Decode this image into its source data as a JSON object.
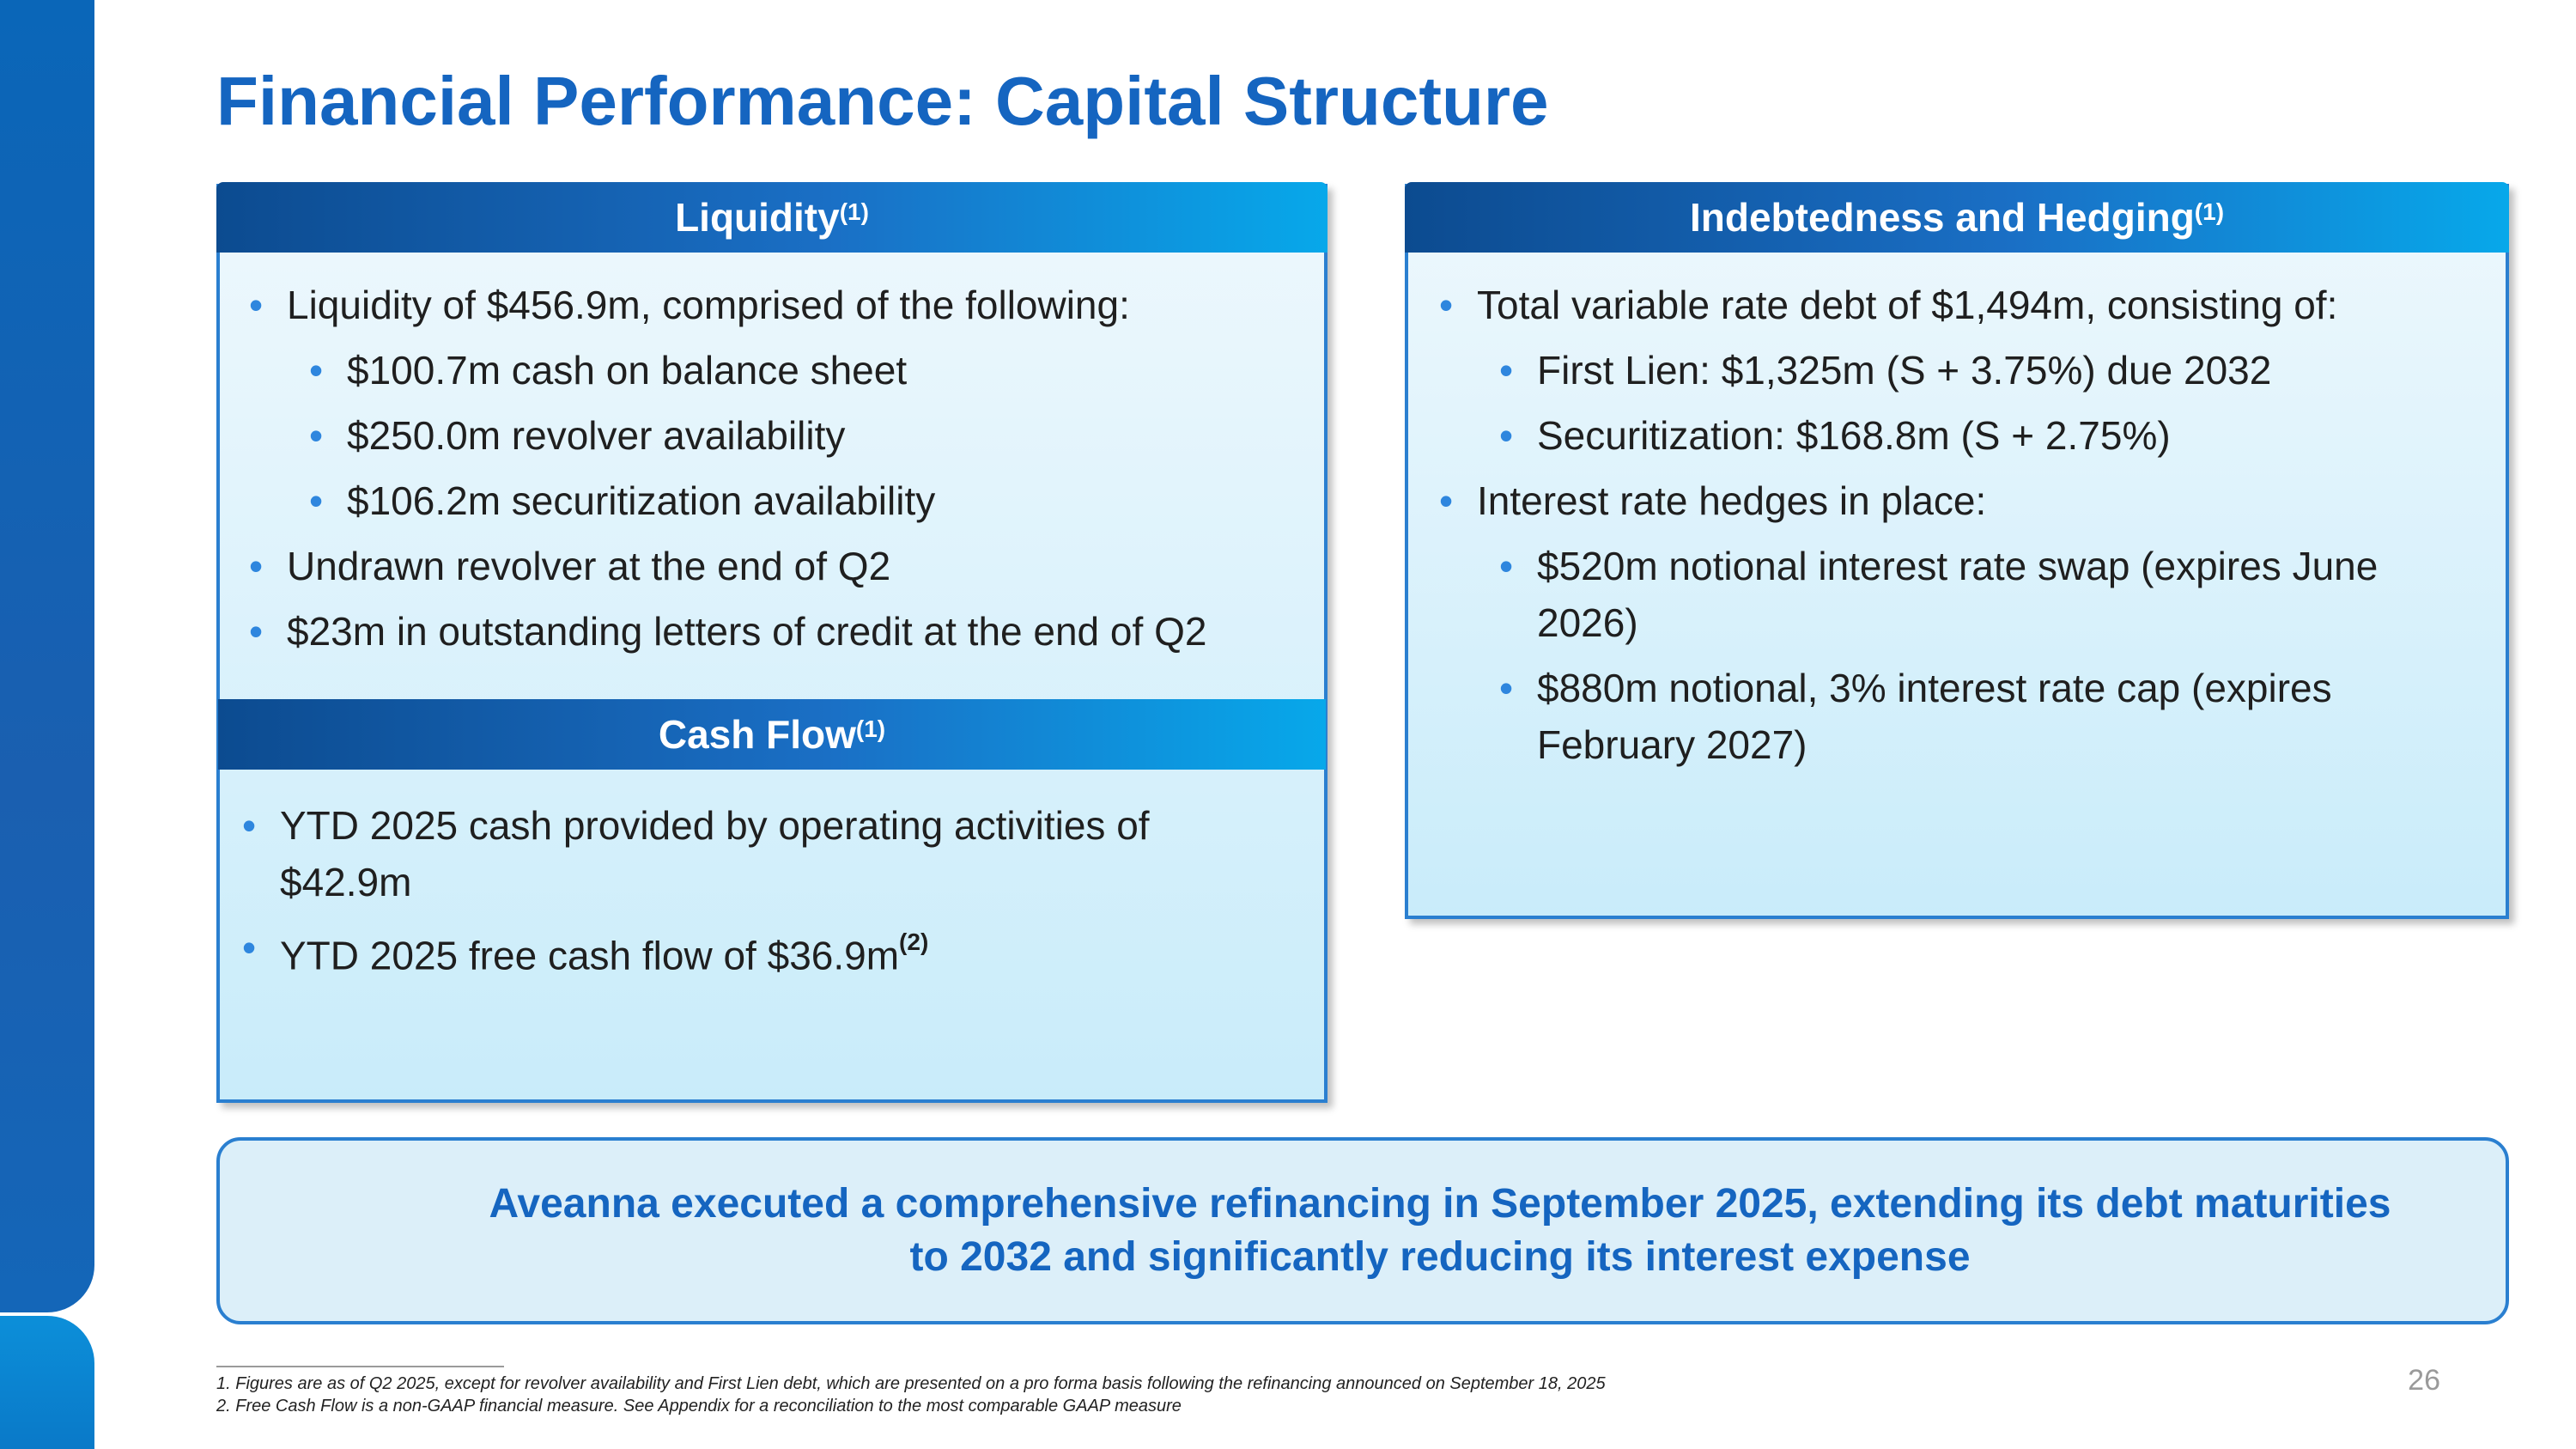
{
  "slide": {
    "title": "Financial Performance: Capital Structure",
    "page_number": "26"
  },
  "liquidity": {
    "heading": "Liquidity",
    "heading_note": "(1)",
    "items": [
      {
        "text": "Liquidity of $456.9m, comprised of the following:",
        "level": 1
      },
      {
        "text": "$100.7m cash on balance sheet",
        "level": 2
      },
      {
        "text": "$250.0m revolver availability",
        "level": 2
      },
      {
        "text": "$106.2m securitization availability",
        "level": 2
      },
      {
        "text": "Undrawn revolver at the end of Q2",
        "level": 1
      },
      {
        "text": "$23m in outstanding letters of credit at the end of Q2",
        "level": 1
      }
    ]
  },
  "cash_flow": {
    "heading": "Cash Flow",
    "heading_note": "(1)",
    "items": [
      {
        "text": "YTD 2025 cash provided by operating activities of $42.9m"
      },
      {
        "text": "YTD 2025 free cash flow of $36.9m",
        "note": "(2)"
      }
    ]
  },
  "indebtedness": {
    "heading": "Indebtedness and Hedging",
    "heading_note": "(1)",
    "items": [
      {
        "text": "Total variable rate debt of $1,494m, consisting of:",
        "level": 1
      },
      {
        "text": "First Lien: $1,325m (S + 3.75%) due 2032",
        "level": 2
      },
      {
        "text": "Securitization: $168.8m (S + 2.75%)",
        "level": 2
      },
      {
        "text": "Interest rate hedges in place:",
        "level": 1
      },
      {
        "text": "$520m notional interest rate swap (expires June 2026)",
        "level": 2
      },
      {
        "text": "$880m notional, 3% interest rate cap (expires February 2027)",
        "level": 2
      }
    ]
  },
  "callout": {
    "text": "Aveanna executed a comprehensive refinancing in September 2025, extending its debt maturities to 2032 and significantly reducing its interest expense"
  },
  "footnotes": [
    "1. Figures are as of Q2 2025, except for revolver availability and First Lien debt, which are presented on a pro forma basis following the refinancing announced on September 18, 2025",
    "2. Free Cash Flow is a non-GAAP financial measure. See Appendix for a reconciliation to the most comparable GAAP measure"
  ],
  "colors": {
    "title": "#1565c0",
    "header_start": "#0c4b90",
    "header_end": "#07a8ea",
    "panel_border": "#2a7fd0",
    "bullet": "#2e86de"
  }
}
